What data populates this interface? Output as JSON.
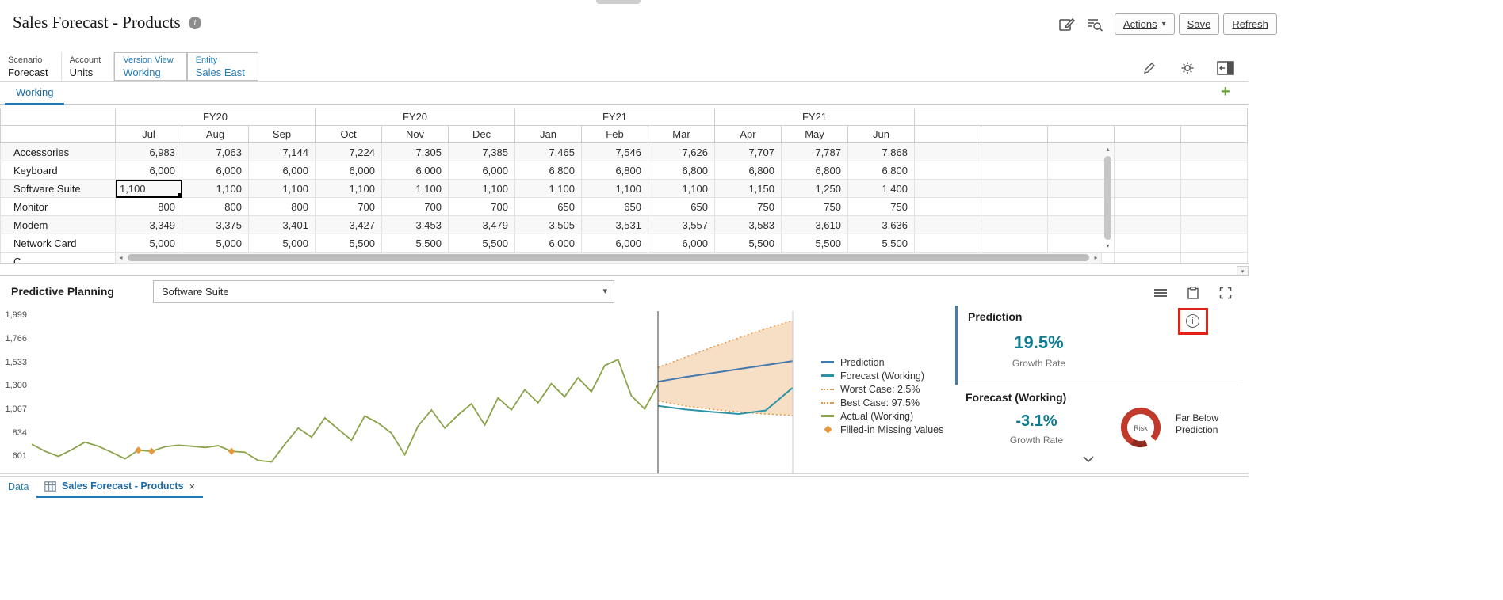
{
  "header": {
    "title": "Sales Forecast - Products",
    "actions_label": "Actions",
    "save_label": "Save",
    "refresh_label": "Refresh"
  },
  "pov": {
    "items": [
      {
        "dim": "Scenario",
        "member": "Forecast",
        "highlight": false
      },
      {
        "dim": "Account",
        "member": "Units",
        "highlight": false
      },
      {
        "dim": "Version View",
        "member": "Working",
        "highlight": true
      },
      {
        "dim": "Entity",
        "member": "Sales East",
        "highlight": true
      }
    ]
  },
  "sheet_tab_label": "Working",
  "grid": {
    "quarter_headers": [
      "FY20",
      "FY20",
      "FY21",
      "FY21"
    ],
    "month_headers": [
      "Jul",
      "Aug",
      "Sep",
      "Oct",
      "Nov",
      "Dec",
      "Jan",
      "Feb",
      "Mar",
      "Apr",
      "May",
      "Jun"
    ],
    "rows": [
      {
        "name": "Accessories",
        "values": [
          "6,983",
          "7,063",
          "7,144",
          "7,224",
          "7,305",
          "7,385",
          "7,465",
          "7,546",
          "7,626",
          "7,707",
          "7,787",
          "7,868"
        ]
      },
      {
        "name": "Keyboard",
        "values": [
          "6,000",
          "6,000",
          "6,000",
          "6,000",
          "6,000",
          "6,000",
          "6,800",
          "6,800",
          "6,800",
          "6,800",
          "6,800",
          "6,800"
        ]
      },
      {
        "name": "Software Suite",
        "selected_col": 0,
        "values": [
          "1,100",
          "1,100",
          "1,100",
          "1,100",
          "1,100",
          "1,100",
          "1,100",
          "1,100",
          "1,100",
          "1,150",
          "1,250",
          "1,400"
        ]
      },
      {
        "name": "Monitor",
        "values": [
          "800",
          "800",
          "800",
          "700",
          "700",
          "700",
          "650",
          "650",
          "650",
          "750",
          "750",
          "750"
        ]
      },
      {
        "name": "Modem",
        "values": [
          "3,349",
          "3,375",
          "3,401",
          "3,427",
          "3,453",
          "3,479",
          "3,505",
          "3,531",
          "3,557",
          "3,583",
          "3,610",
          "3,636"
        ]
      },
      {
        "name": "Network Card",
        "values": [
          "5,000",
          "5,000",
          "5,000",
          "5,500",
          "5,500",
          "5,500",
          "6,000",
          "6,000",
          "6,000",
          "5,500",
          "5,500",
          "5,500"
        ]
      }
    ],
    "partial_row": "C"
  },
  "predictive": {
    "title": "Predictive Planning",
    "selected_member": "Software Suite",
    "legend": [
      {
        "label": "Prediction",
        "swatch": "line",
        "color": "#4479ad"
      },
      {
        "label": "Forecast (Working)",
        "swatch": "line",
        "color": "#2c93a5"
      },
      {
        "label": "Worst Case: 2.5%",
        "swatch": "dotted",
        "color": "#e69543"
      },
      {
        "label": "Best Case: 97.5%",
        "swatch": "dotted",
        "color": "#e69543"
      },
      {
        "label": "Actual (Working)",
        "swatch": "line",
        "color": "#8aa349"
      },
      {
        "label": "Filled-in Missing Values",
        "swatch": "diamond",
        "color": "#e8973f"
      }
    ],
    "prediction_card": {
      "title": "Prediction",
      "value": "19.5%",
      "caption": "Growth Rate"
    },
    "forecast_card": {
      "title": "Forecast (Working)",
      "value": "-3.1%",
      "caption": "Growth Rate",
      "gauge_label": "Risk",
      "gauge_status": "Far Below Prediction"
    }
  },
  "chart_data": {
    "type": "line",
    "title": "",
    "y_ticks": [
      "1,999",
      "1,766",
      "1,533",
      "1,300",
      "1,067",
      "834",
      "601"
    ],
    "ylim": [
      376,
      2040
    ],
    "history": {
      "name": "Actual (Working)",
      "values": [
        720,
        650,
        600,
        665,
        740,
        700,
        640,
        575,
        660,
        650,
        695,
        710,
        700,
        688,
        705,
        650,
        640,
        560,
        545,
        720,
        880,
        790,
        980,
        870,
        760,
        1000,
        930,
        830,
        615,
        900,
        1060,
        880,
        1010,
        1120,
        910,
        1180,
        1060,
        1260,
        1130,
        1320,
        1190,
        1380,
        1240,
        1500,
        1560,
        1200,
        1070,
        1310
      ],
      "missing_indices": [
        8,
        9,
        15
      ]
    },
    "prediction": {
      "name": "Prediction",
      "values": [
        1340,
        1385,
        1425,
        1465,
        1505,
        1545
      ]
    },
    "forecast": {
      "name": "Forecast (Working)",
      "values": [
        1100,
        1065,
        1040,
        1020,
        1055,
        1280
      ]
    },
    "worst_case": {
      "name": "Worst Case: 2.5%",
      "values": [
        1150,
        1100,
        1065,
        1040,
        1020,
        1005
      ]
    },
    "best_case": {
      "name": "Best Case: 97.5%",
      "values": [
        1480,
        1580,
        1680,
        1775,
        1865,
        1945
      ]
    },
    "colors": {
      "actual": "#8aa349",
      "prediction": "#4479ad",
      "forecast": "#2c93a5",
      "bounds": "#e69543",
      "cone_fill": "#f6dcc0",
      "missing_marker": "#e8973f"
    }
  },
  "bottom_bar": {
    "data_label": "Data",
    "tab_label": "Sales Forecast - Products"
  },
  "colors": {
    "accent_blue": "#267db3",
    "metric_teal": "#0f7c90",
    "risk_red": "#c0392b",
    "annotation_red": "#e32119",
    "add_green": "#69a038"
  }
}
